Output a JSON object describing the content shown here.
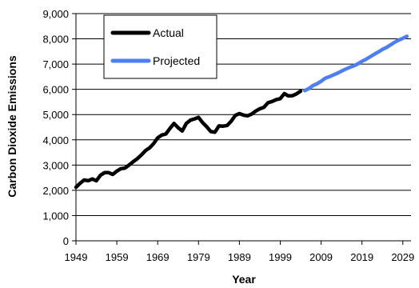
{
  "chart_data": {
    "type": "line",
    "xlabel": "Year",
    "ylabel": "Carbon Dioxide Emissions",
    "xlim": [
      1949,
      2031
    ],
    "ylim": [
      0,
      9000
    ],
    "x_ticks": [
      "1949",
      "1959",
      "1969",
      "1979",
      "1989",
      "1999",
      "2009",
      "2019",
      "2029"
    ],
    "y_ticks": [
      "0",
      "1,000",
      "2,000",
      "3,000",
      "4,000",
      "5,000",
      "6,000",
      "7,000",
      "8,000",
      "9,000"
    ],
    "grid": "horizontal",
    "legend_position": "top-left",
    "series": [
      {
        "name": "Actual",
        "color": "#000000",
        "points": [
          [
            1949,
            2120
          ],
          [
            1950,
            2280
          ],
          [
            1951,
            2410
          ],
          [
            1952,
            2380
          ],
          [
            1953,
            2450
          ],
          [
            1954,
            2380
          ],
          [
            1955,
            2600
          ],
          [
            1956,
            2700
          ],
          [
            1957,
            2700
          ],
          [
            1958,
            2630
          ],
          [
            1959,
            2760
          ],
          [
            1960,
            2860
          ],
          [
            1961,
            2880
          ],
          [
            1962,
            3000
          ],
          [
            1963,
            3130
          ],
          [
            1964,
            3250
          ],
          [
            1965,
            3400
          ],
          [
            1966,
            3570
          ],
          [
            1967,
            3680
          ],
          [
            1968,
            3850
          ],
          [
            1969,
            4080
          ],
          [
            1970,
            4190
          ],
          [
            1971,
            4230
          ],
          [
            1972,
            4450
          ],
          [
            1973,
            4650
          ],
          [
            1974,
            4480
          ],
          [
            1975,
            4350
          ],
          [
            1976,
            4650
          ],
          [
            1977,
            4780
          ],
          [
            1978,
            4830
          ],
          [
            1979,
            4890
          ],
          [
            1980,
            4680
          ],
          [
            1981,
            4520
          ],
          [
            1982,
            4330
          ],
          [
            1983,
            4300
          ],
          [
            1984,
            4550
          ],
          [
            1985,
            4540
          ],
          [
            1986,
            4570
          ],
          [
            1987,
            4740
          ],
          [
            1988,
            4970
          ],
          [
            1989,
            5040
          ],
          [
            1990,
            4980
          ],
          [
            1991,
            4950
          ],
          [
            1992,
            5020
          ],
          [
            1993,
            5140
          ],
          [
            1994,
            5230
          ],
          [
            1995,
            5290
          ],
          [
            1996,
            5470
          ],
          [
            1997,
            5520
          ],
          [
            1998,
            5590
          ],
          [
            1999,
            5630
          ],
          [
            2000,
            5830
          ],
          [
            2001,
            5740
          ],
          [
            2002,
            5750
          ],
          [
            2003,
            5820
          ],
          [
            2004,
            5930
          ]
        ]
      },
      {
        "name": "Projected",
        "color": "#4D7FF0",
        "points": [
          [
            2005,
            5950
          ],
          [
            2006,
            6030
          ],
          [
            2007,
            6150
          ],
          [
            2008,
            6220
          ],
          [
            2009,
            6320
          ],
          [
            2010,
            6440
          ],
          [
            2011,
            6500
          ],
          [
            2012,
            6570
          ],
          [
            2013,
            6640
          ],
          [
            2014,
            6720
          ],
          [
            2015,
            6800
          ],
          [
            2016,
            6870
          ],
          [
            2017,
            6930
          ],
          [
            2018,
            7010
          ],
          [
            2019,
            7110
          ],
          [
            2020,
            7190
          ],
          [
            2021,
            7290
          ],
          [
            2022,
            7390
          ],
          [
            2023,
            7480
          ],
          [
            2024,
            7580
          ],
          [
            2025,
            7660
          ],
          [
            2026,
            7760
          ],
          [
            2027,
            7870
          ],
          [
            2028,
            7950
          ],
          [
            2029,
            8020
          ],
          [
            2030,
            8100
          ]
        ]
      }
    ]
  }
}
